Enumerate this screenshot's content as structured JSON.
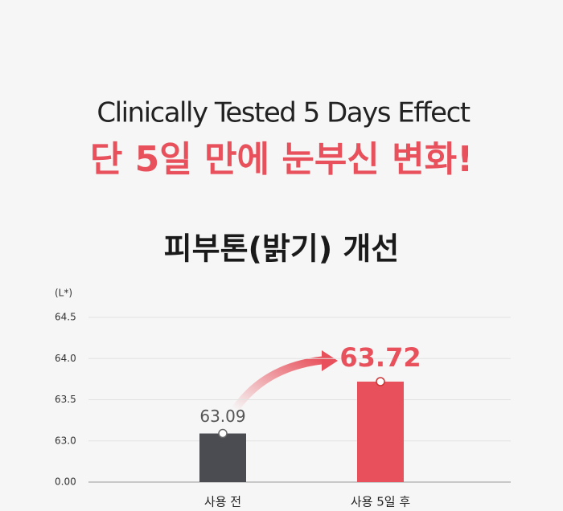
{
  "chart_data": {
    "type": "bar",
    "subtitle": "Clinically Tested 5 Days Effect",
    "title": "단 5일 만에 눈부신 변화!",
    "chart_title": "피부톤(밝기) 개선",
    "y_label": "(L*)",
    "categories": [
      "사용 전",
      "사용 5일 후"
    ],
    "values": [
      63.09,
      63.72
    ],
    "colors": [
      "#4a4c52",
      "#e8505b"
    ],
    "ylim": [
      62.5,
      64.5
    ],
    "yticks": [
      {
        "value": 0,
        "label": "0.00"
      },
      {
        "value": 63,
        "label": "63.0"
      },
      63.5,
      {
        "value": 64,
        "label": "64.0"
      },
      64.5
    ],
    "axis_break": true,
    "grid": true
  }
}
